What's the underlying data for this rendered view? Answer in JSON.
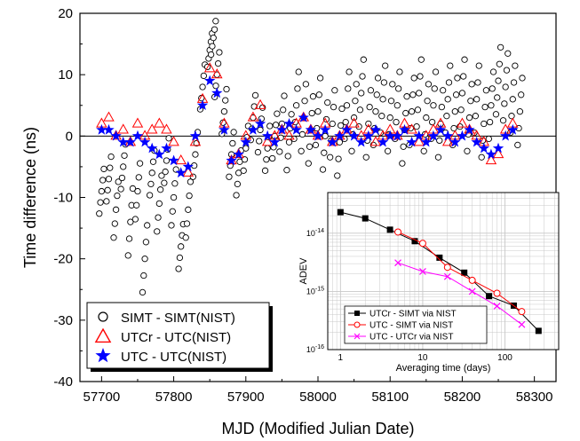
{
  "chart_data": [
    {
      "type": "scatter",
      "xlabel": "MJD (Modified Julian Date)",
      "ylabel": "Time difference (ns)",
      "xlim": [
        57670,
        58330
      ],
      "ylim": [
        -40,
        20
      ],
      "x_ticks": [
        57700,
        57800,
        57900,
        58000,
        58100,
        58200,
        58300
      ],
      "y_ticks": [
        -40,
        -30,
        -20,
        -10,
        0,
        10,
        20
      ],
      "zero_line": true,
      "legend_position": "bottom-left",
      "series": [
        {
          "name": "SIMT - SIMT(NIST)",
          "marker": "open-circle",
          "color": "#000000",
          "x": [
            57700,
            57710,
            57720,
            57730,
            57740,
            57750,
            57760,
            57770,
            57780,
            57790,
            57800,
            57810,
            57820,
            57830,
            57840,
            57850,
            57855,
            57860,
            57870,
            57880,
            57890,
            57900,
            57910,
            57920,
            57930,
            57940,
            57950,
            57960,
            57970,
            57980,
            57990,
            58000,
            58010,
            58020,
            58030,
            58040,
            58050,
            58060,
            58070,
            58080,
            58090,
            58100,
            58110,
            58120,
            58130,
            58140,
            58150,
            58160,
            58170,
            58180,
            58190,
            58200,
            58210,
            58220,
            58230,
            58240,
            58250,
            58260,
            58270,
            58280
          ],
          "y": [
            -9,
            -7,
            -12,
            -5,
            -14,
            -9,
            -20,
            -6,
            -11,
            -4,
            -10,
            -18,
            -12,
            -3,
            8,
            14,
            16,
            10,
            4,
            -3,
            -6,
            -2,
            3,
            1,
            -2,
            0,
            2,
            -1,
            5,
            3,
            1,
            4,
            0,
            2,
            -1,
            5,
            3,
            7,
            2,
            4,
            6,
            3,
            5,
            1,
            4,
            7,
            3,
            5,
            2,
            6,
            4,
            7,
            3,
            6,
            2,
            5,
            9,
            8,
            6,
            4
          ],
          "spread": [
            4,
            4,
            5,
            4,
            6,
            5,
            6,
            4,
            5,
            4,
            5,
            4,
            5,
            4,
            4,
            3,
            3,
            4,
            4,
            4,
            4,
            4,
            4,
            4,
            4,
            4,
            5,
            5,
            6,
            6,
            6,
            6,
            6,
            6,
            6,
            6,
            6,
            6,
            6,
            6,
            6,
            6,
            6,
            6,
            6,
            6,
            6,
            6,
            6,
            6,
            6,
            6,
            6,
            6,
            6,
            6,
            6,
            6,
            6,
            6
          ]
        },
        {
          "name": "UTCr - UTC(NIST)",
          "marker": "open-triangle",
          "color": "#ff0000",
          "x": [
            57700,
            57710,
            57720,
            57730,
            57740,
            57750,
            57760,
            57770,
            57780,
            57790,
            57800,
            57810,
            57820,
            57830,
            57840,
            57850,
            57860,
            57870,
            57880,
            57890,
            57900,
            57910,
            57920,
            57930,
            57940,
            57950,
            57960,
            57970,
            57980,
            57990,
            58000,
            58010,
            58020,
            58030,
            58040,
            58050,
            58060,
            58070,
            58080,
            58090,
            58100,
            58110,
            58120,
            58130,
            58140,
            58150,
            58160,
            58170,
            58180,
            58190,
            58200,
            58210,
            58220,
            58230,
            58240,
            58250,
            58260,
            58270
          ],
          "y": [
            2,
            3,
            0,
            1,
            -1,
            2,
            0,
            1,
            2,
            1,
            -1,
            -4,
            -6,
            -1,
            6,
            11,
            10,
            2,
            -4,
            -3,
            0,
            3,
            5,
            -1,
            0,
            1,
            0,
            2,
            3,
            1,
            0,
            2,
            -1,
            0,
            1,
            2,
            0,
            1,
            -1,
            0,
            1,
            0,
            2,
            1,
            -1,
            0,
            1,
            2,
            -1,
            0,
            2,
            1,
            0,
            -1,
            -4,
            -3,
            1,
            2
          ]
        },
        {
          "name": "UTC - UTC(NIST)",
          "marker": "filled-star",
          "color": "#0000ff",
          "x": [
            57700,
            57710,
            57720,
            57730,
            57740,
            57750,
            57760,
            57770,
            57780,
            57790,
            57800,
            57810,
            57820,
            57830,
            57840,
            57850,
            57860,
            57870,
            57880,
            57890,
            57900,
            57910,
            57920,
            57930,
            57940,
            57950,
            57960,
            57970,
            57980,
            57990,
            58000,
            58010,
            58020,
            58030,
            58040,
            58050,
            58060,
            58070,
            58080,
            58090,
            58100,
            58110,
            58120,
            58130,
            58140,
            58150,
            58160,
            58170,
            58180,
            58190,
            58200,
            58210,
            58220,
            58230,
            58240,
            58250,
            58260,
            58270
          ],
          "y": [
            1,
            1,
            0,
            -1,
            -1,
            0,
            -1,
            -2,
            -3,
            -2,
            -4,
            -6,
            -5,
            0,
            5,
            9,
            7,
            1,
            -4,
            -3,
            -1,
            1,
            2,
            0,
            -1,
            1,
            2,
            1,
            3,
            1,
            0,
            1,
            -1,
            0,
            1,
            0,
            -1,
            0,
            1,
            -1,
            0,
            0,
            1,
            -1,
            0,
            -1,
            0,
            1,
            0,
            -1,
            0,
            1,
            -1,
            -2,
            -3,
            -2,
            0,
            1
          ]
        }
      ]
    },
    {
      "type": "line",
      "xlabel": "Averaging time (days)",
      "ylabel": "ADEV",
      "x_scale": "log",
      "y_scale": "log",
      "xlim": [
        0.7,
        450
      ],
      "ylim": [
        1e-16,
        5e-14
      ],
      "x_tick_labels": [
        "1",
        "10",
        "100"
      ],
      "y_tick_labels": [
        "10^-16",
        "10^-15",
        "10^-14"
      ],
      "grid": true,
      "legend_position": "bottom-right",
      "series": [
        {
          "name": "UTCr - SIMT via NIST",
          "marker": "filled-square",
          "color": "#000000",
          "x": [
            1,
            2,
            4,
            8,
            16,
            32,
            64,
            128,
            256
          ],
          "y": [
            2.3e-14,
            1.8e-14,
            1.15e-14,
            7.3e-15,
            3.8e-15,
            2.1e-15,
            8.3e-16,
            5.7e-16,
            2.1e-16
          ]
        },
        {
          "name": "UTC - SIMT via NIST",
          "marker": "open-circle",
          "color": "#ff0000",
          "x": [
            5,
            10,
            20,
            40,
            80,
            160
          ],
          "y": [
            1.05e-14,
            6.7e-15,
            2.6e-15,
            1.55e-15,
            9.3e-16,
            4.5e-16
          ]
        },
        {
          "name": "UTC - UTCr via NIST",
          "marker": "cross",
          "color": "#ff00ff",
          "x": [
            5,
            10,
            20,
            40,
            80,
            160
          ],
          "y": [
            3.1e-15,
            2.2e-15,
            1.8e-15,
            1e-15,
            5.6e-16,
            2.7e-16
          ]
        }
      ]
    }
  ]
}
